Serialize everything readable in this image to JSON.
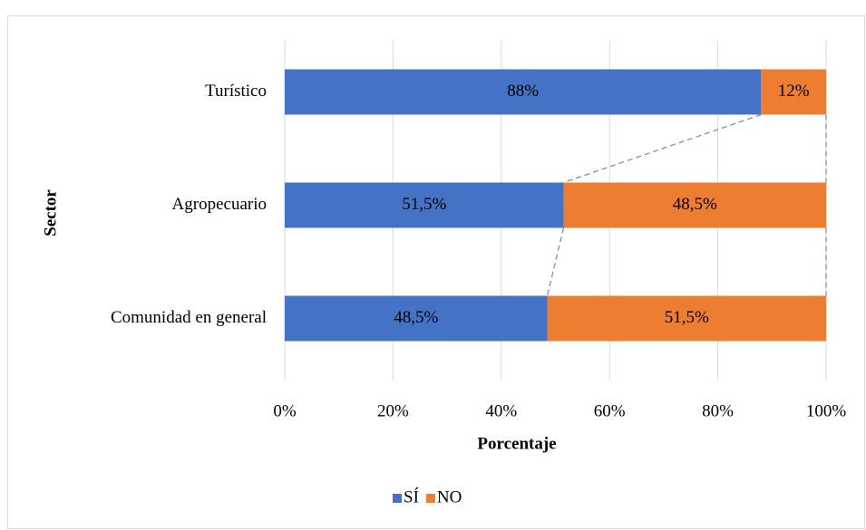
{
  "chart_data": {
    "type": "stacked-barh",
    "categories": [
      "Turístico",
      "Agropecuario",
      "Comunidad en general"
    ],
    "series": [
      {
        "name": "SÍ",
        "color": "#4472c4",
        "values": [
          88,
          51.5,
          48.5
        ],
        "value_labels": [
          "88%",
          "51,5%",
          "48,5%"
        ]
      },
      {
        "name": "NO",
        "color": "#ed7d31",
        "values": [
          12,
          48.5,
          51.5
        ],
        "value_labels": [
          "12%",
          "48,5%",
          "51,5%"
        ]
      }
    ],
    "xlabel": "Porcentaje",
    "ylabel": "Sector",
    "xlim": [
      0,
      100
    ],
    "xticks": [
      {
        "value": 0,
        "label": "0%"
      },
      {
        "value": 20,
        "label": "20%"
      },
      {
        "value": 40,
        "label": "40%"
      },
      {
        "value": 60,
        "label": "60%"
      },
      {
        "value": 80,
        "label": "80%"
      },
      {
        "value": 100,
        "label": "100%"
      }
    ],
    "grid": true,
    "legend": "bottom"
  }
}
